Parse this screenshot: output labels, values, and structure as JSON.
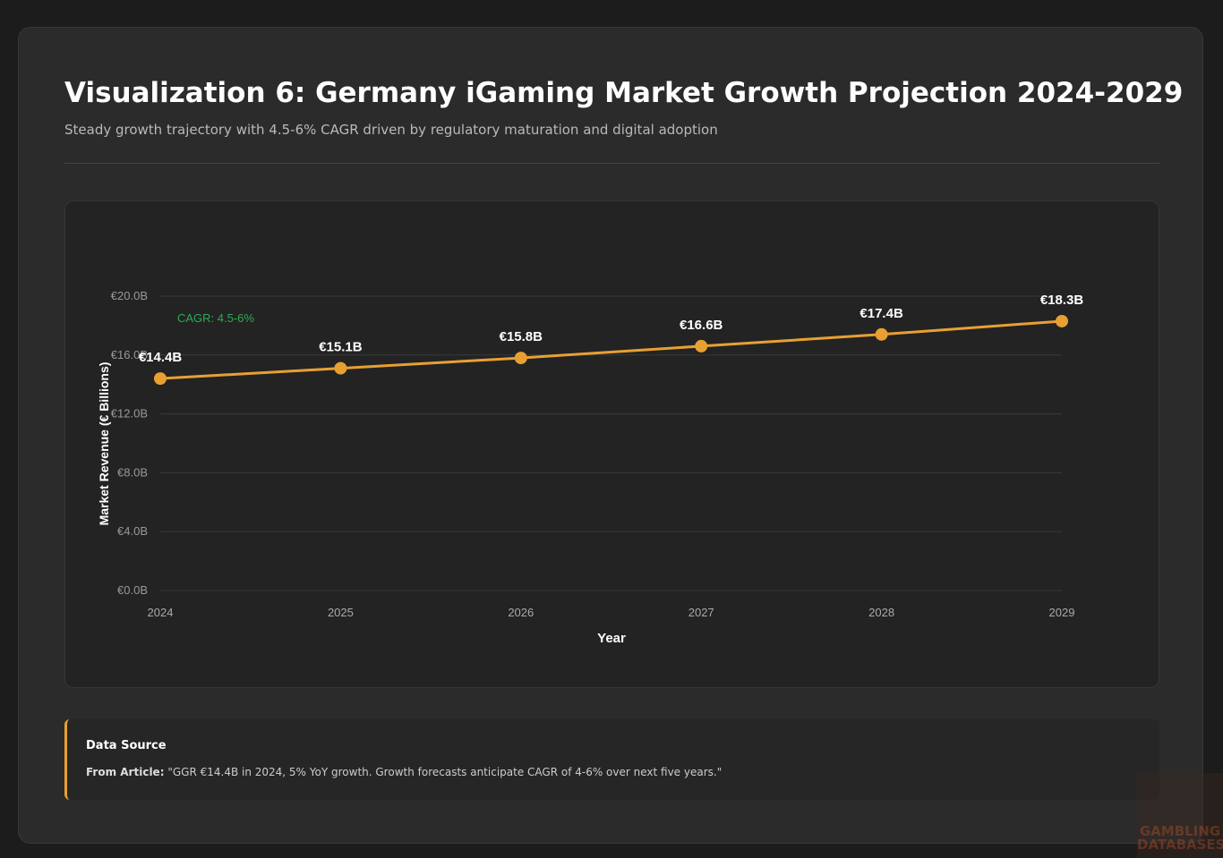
{
  "header": {
    "title": "Visualization 6: Germany iGaming Market Growth Projection 2024-2029",
    "subtitle": "Steady growth trajectory with 4.5-6% CAGR driven by regulatory maturation and digital adoption"
  },
  "chart_data": {
    "type": "line",
    "categories": [
      "2024",
      "2025",
      "2026",
      "2027",
      "2028",
      "2029"
    ],
    "values": [
      14.4,
      15.1,
      15.8,
      16.6,
      17.4,
      18.3
    ],
    "value_labels": [
      "€14.4B",
      "€15.1B",
      "€15.8B",
      "€16.6B",
      "€17.4B",
      "€18.3B"
    ],
    "color": "#e8a033",
    "ylim": [
      0,
      20
    ],
    "yticks": [
      {
        "value": 0,
        "label": "€0.0B"
      },
      {
        "value": 4,
        "label": "€4.0B"
      },
      {
        "value": 8,
        "label": "€8.0B"
      },
      {
        "value": 12,
        "label": "€12.0B"
      },
      {
        "value": 16,
        "label": "€16.0B"
      },
      {
        "value": 20,
        "label": "€20.0B"
      }
    ],
    "grid": true,
    "x_label": "Year",
    "y_label": "Market Revenue (€ Billions)",
    "annotation": "CAGR: 4.5-6%"
  },
  "source": {
    "heading": "Data Source",
    "lead": "From Article:",
    "text": "\"GGR €14.4B in 2024, 5% YoY growth. Growth forecasts anticipate CAGR of 4-6% over next five years.\""
  },
  "watermark": {
    "line1": "GAMBLING",
    "line2": "DATABASES"
  }
}
